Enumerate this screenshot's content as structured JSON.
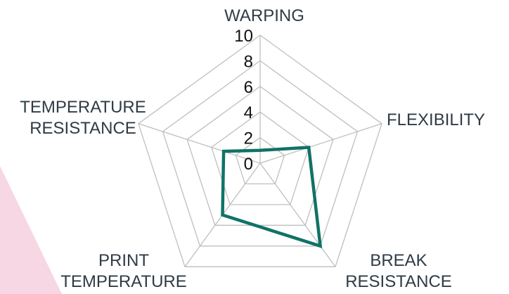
{
  "chart_data": {
    "type": "radar",
    "title": "",
    "axes": [
      {
        "name": "axis-warping",
        "lines": [
          "WARPING"
        ]
      },
      {
        "name": "axis-flexibility",
        "lines": [
          "FLEXIBILITY"
        ]
      },
      {
        "name": "axis-break-resistance",
        "lines": [
          "BREAK",
          "RESISTANCE"
        ]
      },
      {
        "name": "axis-print-temperature",
        "lines": [
          "PRINT",
          "TEMPERATURE"
        ]
      },
      {
        "name": "axis-temperature-resistance",
        "lines": [
          "TEMPERATURE",
          "RESISTANCE"
        ]
      }
    ],
    "categories": [
      "WARPING",
      "FLEXIBILITY",
      "BREAK RESISTANCE",
      "PRINT TEMPERATURE",
      "TEMPERATURE RESISTANCE"
    ],
    "series": [
      {
        "values": [
          1,
          4,
          8,
          5,
          3
        ]
      }
    ],
    "rlim": [
      0,
      10
    ],
    "ticks": [
      0,
      2,
      4,
      6,
      8,
      10
    ],
    "tick_labels": [
      "0",
      "2",
      "4",
      "6",
      "8",
      "10"
    ],
    "grid": true,
    "colors": {
      "series": "#0f7366",
      "grid": "#bfbfbf",
      "labels": "#2f3b46",
      "decoration": "#f6d3e0"
    }
  }
}
